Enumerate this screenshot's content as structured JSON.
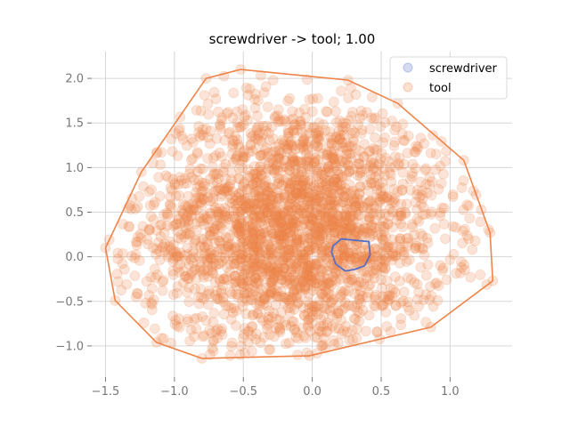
{
  "chart_data": {
    "type": "scatter",
    "title": "screwdriver -> tool; 1.00",
    "xlabel": "",
    "ylabel": "",
    "xlim": [
      -1.6,
      1.45
    ],
    "ylim": [
      -1.35,
      2.3
    ],
    "xticks": [
      -1.5,
      -1.0,
      -0.5,
      0.0,
      0.5,
      1.0
    ],
    "xtick_labels": [
      "−1.5",
      "−1.0",
      "−0.5",
      "0.0",
      "0.5",
      "1.0"
    ],
    "yticks": [
      -1.0,
      -0.5,
      0.0,
      0.5,
      1.0,
      1.5,
      2.0
    ],
    "ytick_labels": [
      "−1.0",
      "−0.5",
      "0.0",
      "0.5",
      "1.0",
      "1.5",
      "2.0"
    ],
    "grid": true,
    "legend_position": "top-right",
    "series": [
      {
        "name": "screwdriver",
        "color": "#5470c6",
        "hull": [
          [
            0.15,
            0.12
          ],
          [
            0.21,
            0.2
          ],
          [
            0.41,
            0.17
          ],
          [
            0.42,
            0.02
          ],
          [
            0.38,
            -0.1
          ],
          [
            0.31,
            -0.14
          ],
          [
            0.24,
            -0.16
          ],
          [
            0.17,
            -0.08
          ],
          [
            0.14,
            0.05
          ]
        ]
      },
      {
        "name": "tool",
        "color": "#ee854a",
        "hull": [
          [
            -0.52,
            2.1
          ],
          [
            -0.77,
            2.0
          ],
          [
            -1.24,
            0.95
          ],
          [
            -1.5,
            0.1
          ],
          [
            -1.43,
            -0.49
          ],
          [
            -1.13,
            -0.96
          ],
          [
            -0.8,
            -1.14
          ],
          [
            -0.02,
            -1.11
          ],
          [
            0.86,
            -0.79
          ],
          [
            1.31,
            -0.27
          ],
          [
            1.29,
            0.27
          ],
          [
            1.1,
            1.08
          ],
          [
            0.62,
            1.72
          ],
          [
            0.26,
            1.98
          ]
        ]
      }
    ]
  }
}
